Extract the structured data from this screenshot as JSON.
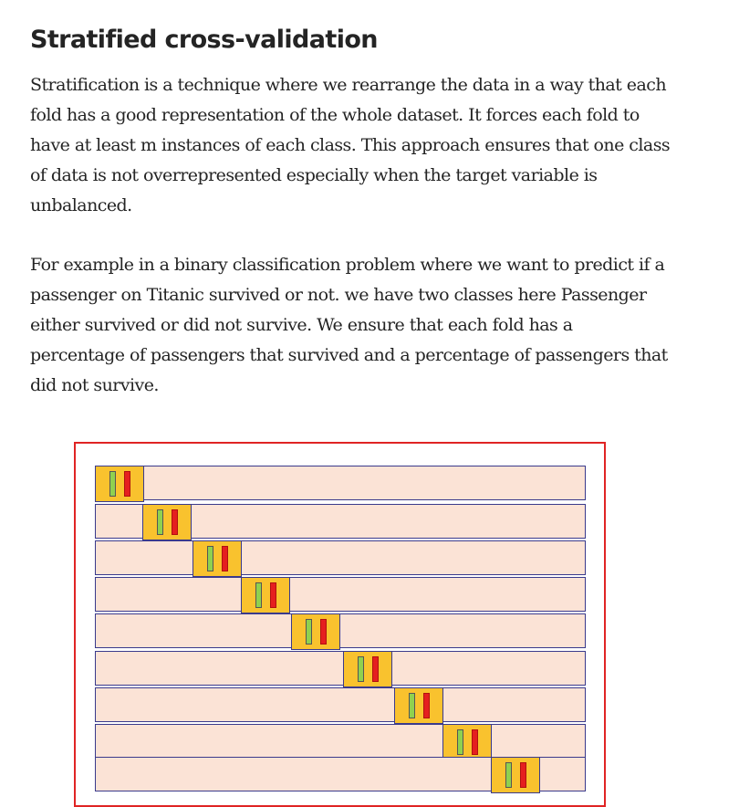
{
  "article": {
    "heading": "Stratified cross-validation",
    "paragraph1_lines": [
      "Stratification is a technique where we rearrange the data in a way that each",
      "fold has a good representation of the whole dataset. It forces each fold to",
      "have at least m instances of each class. This approach ensures that one class",
      "of data is not overrepresented especially when the target variable is",
      "unbalanced."
    ],
    "paragraph2_lines": [
      "For example in a binary classification problem where we want to predict if a",
      "passenger on Titanic survived or not. we have two classes here Passenger",
      "either survived or did not survive. We ensure that each fold has a",
      "percentage of passengers that survived and a percentage of passengers that",
      "did not survive."
    ]
  },
  "figure": {
    "border_color": "#e02424",
    "row_color": "#fbe3d6",
    "fold_color": "#f9c22e",
    "class_colors": [
      "#8fd14f",
      "#e51f1f"
    ],
    "visible_iterations": 9
  }
}
